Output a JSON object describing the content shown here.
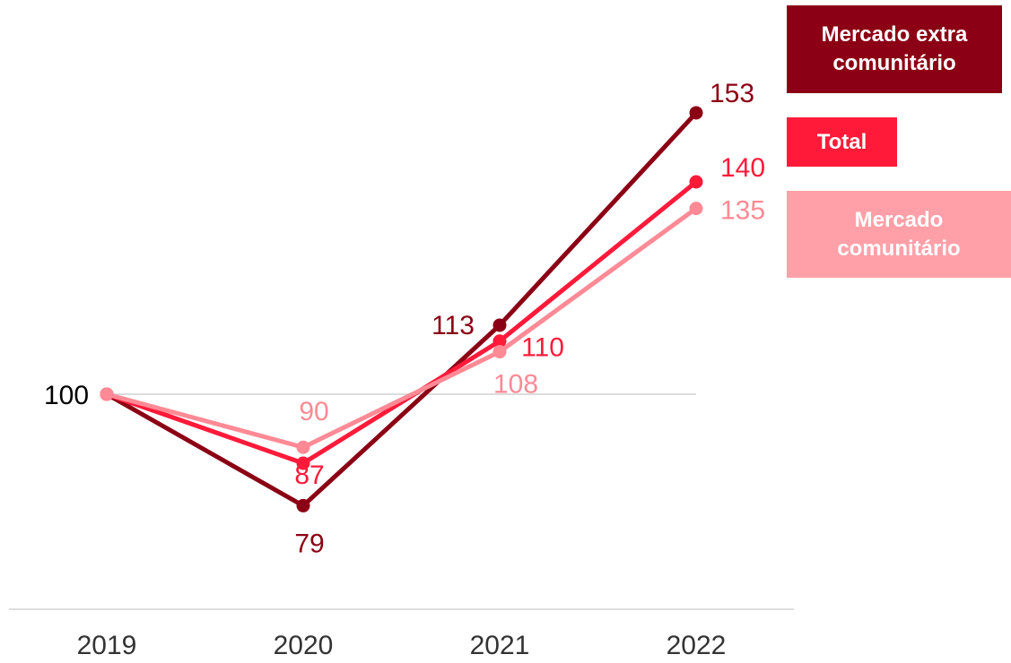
{
  "chart_data": {
    "type": "line",
    "categories": [
      "2019",
      "2020",
      "2021",
      "2022"
    ],
    "series": [
      {
        "name": "Mercado extra comunitário",
        "color": "#8b0014",
        "values": [
          100,
          79,
          113,
          153
        ]
      },
      {
        "name": "Total",
        "color": "#ff1a3a",
        "values": [
          100,
          87,
          110,
          140
        ]
      },
      {
        "name": "Mercado comunitário",
        "color": "#ff8a95",
        "values": [
          100,
          90,
          108,
          135
        ]
      }
    ],
    "ylim": [
      60,
      160
    ],
    "reference_line": 100,
    "legend": "top-right"
  }
}
